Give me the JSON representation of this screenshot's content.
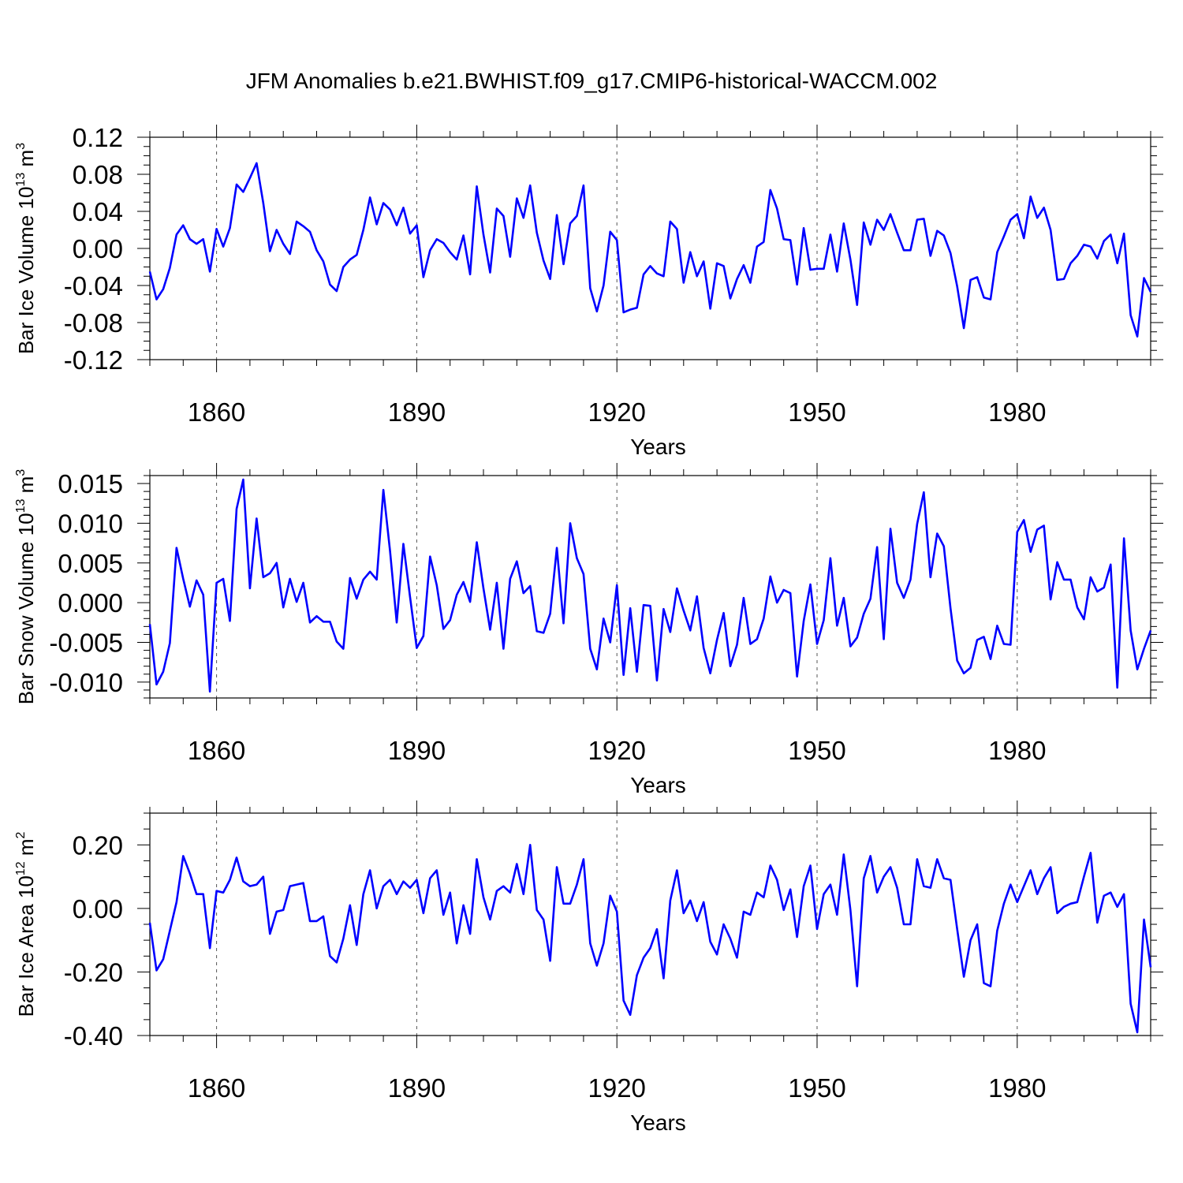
{
  "chart_data": {
    "type": "line",
    "title": "JFM Anomalies b.e21.BWHIST.f09_g17.CMIP6-historical-WACCM.002",
    "x_start": 1850,
    "x_end": 2000,
    "color": "#0000ff",
    "panels": [
      {
        "id": "ice-volume",
        "ylabel": "Bar Ice Volume 10",
        "ylabel_exp": "13",
        "ylabel_unit": " m",
        "ylabel_unit_exp": "3",
        "xlabel": "Years",
        "ylim": [
          -0.12,
          0.12
        ],
        "yticks": [
          -0.12,
          -0.08,
          -0.04,
          0.0,
          0.04,
          0.08,
          0.12
        ],
        "ytick_labels": [
          "-0.12",
          "-0.08",
          "-0.04",
          "0.00",
          "0.04",
          "0.08",
          "0.12"
        ],
        "xticks": [
          1860,
          1890,
          1920,
          1950,
          1980
        ],
        "xtick_labels": [
          "1860",
          "1890",
          "1920",
          "1950",
          "1980"
        ],
        "values": [
          -0.025,
          -0.055,
          -0.044,
          -0.021,
          0.015,
          0.025,
          0.01,
          0.005,
          0.01,
          -0.025,
          0.021,
          0.002,
          0.022,
          0.069,
          0.061,
          0.076,
          0.092,
          0.049,
          -0.003,
          0.02,
          0.005,
          -0.006,
          0.029,
          0.024,
          0.018,
          -0.002,
          -0.014,
          -0.039,
          -0.046,
          -0.02,
          -0.012,
          -0.007,
          0.02,
          0.055,
          0.026,
          0.049,
          0.042,
          0.025,
          0.044,
          0.016,
          0.025,
          -0.031,
          -0.002,
          0.01,
          0.006,
          -0.004,
          -0.012,
          0.014,
          -0.028,
          0.067,
          0.015,
          -0.026,
          0.043,
          0.035,
          -0.009,
          0.054,
          0.033,
          0.068,
          0.017,
          -0.013,
          -0.033,
          0.036,
          -0.017,
          0.027,
          0.035,
          0.068,
          -0.043,
          -0.068,
          -0.04,
          0.018,
          0.009,
          -0.069,
          -0.066,
          -0.064,
          -0.028,
          -0.019,
          -0.027,
          -0.03,
          0.029,
          0.021,
          -0.037,
          -0.004,
          -0.03,
          -0.014,
          -0.065,
          -0.016,
          -0.019,
          -0.054,
          -0.033,
          -0.018,
          -0.037,
          0.002,
          0.007,
          0.063,
          0.043,
          0.01,
          0.009,
          -0.039,
          0.022,
          -0.023,
          -0.022,
          -0.022,
          0.015,
          -0.025,
          0.027,
          -0.012,
          -0.061,
          0.028,
          0.004,
          0.031,
          0.02,
          0.037,
          0.017,
          -0.002,
          -0.002,
          0.031,
          0.032,
          -0.008,
          0.019,
          0.014,
          -0.005,
          -0.041,
          -0.086,
          -0.034,
          -0.031,
          -0.053,
          -0.055,
          -0.004,
          0.013,
          0.031,
          0.037,
          0.011,
          0.056,
          0.033,
          0.044,
          0.02,
          -0.034,
          -0.033,
          -0.016,
          -0.008,
          0.004,
          0.002,
          -0.011,
          0.008,
          0.015,
          -0.016,
          0.016,
          -0.072,
          -0.095,
          -0.032,
          -0.047
        ]
      },
      {
        "id": "snow-volume",
        "ylabel": "Bar Snow Volume 10",
        "ylabel_exp": "13",
        "ylabel_unit": " m",
        "ylabel_unit_exp": "3",
        "xlabel": "Years",
        "ylim": [
          -0.012,
          0.016
        ],
        "yticks": [
          -0.01,
          -0.005,
          0.0,
          0.005,
          0.01,
          0.015
        ],
        "ytick_labels": [
          "-0.010",
          "-0.005",
          "0.000",
          "0.005",
          "0.010",
          "0.015"
        ],
        "xticks": [
          1860,
          1890,
          1920,
          1950,
          1980
        ],
        "xtick_labels": [
          "1860",
          "1890",
          "1920",
          "1950",
          "1980"
        ],
        "values": [
          -0.0027,
          -0.0103,
          -0.0087,
          -0.0051,
          0.0069,
          0.003,
          -0.0005,
          0.0028,
          0.001,
          -0.0112,
          0.0025,
          0.003,
          -0.0023,
          0.0118,
          0.0155,
          0.0018,
          0.0106,
          0.0032,
          0.0037,
          0.005,
          -0.0006,
          0.003,
          0.0001,
          0.0025,
          -0.0025,
          -0.0017,
          -0.0024,
          -0.0024,
          -0.0049,
          -0.0058,
          0.0031,
          0.0005,
          0.0029,
          0.0039,
          0.0029,
          0.0142,
          0.0065,
          -0.0025,
          0.0074,
          0.0007,
          -0.0057,
          -0.0042,
          0.0058,
          0.0022,
          -0.0033,
          -0.0022,
          0.001,
          0.0026,
          0.0001,
          0.0076,
          0.0018,
          -0.0034,
          0.0025,
          -0.0058,
          0.003,
          0.0052,
          0.0012,
          0.0021,
          -0.0036,
          -0.0038,
          -0.0014,
          0.0069,
          -0.0026,
          0.01,
          0.0056,
          0.0036,
          -0.0058,
          -0.0084,
          -0.002,
          -0.005,
          0.0022,
          -0.0091,
          -0.0007,
          -0.0087,
          -0.0003,
          -0.0004,
          -0.0098,
          -0.0008,
          -0.0037,
          0.0018,
          -0.001,
          -0.0035,
          0.0008,
          -0.0057,
          -0.0089,
          -0.0047,
          -0.0013,
          -0.008,
          -0.0053,
          0.0006,
          -0.0052,
          -0.0046,
          -0.002,
          0.0033,
          0.0,
          0.0016,
          0.0012,
          -0.0093,
          -0.0023,
          0.0023,
          -0.0052,
          -0.0022,
          0.0056,
          -0.0029,
          0.0006,
          -0.0055,
          -0.0044,
          -0.0014,
          0.0005,
          0.007,
          -0.0046,
          0.0093,
          0.0025,
          0.0006,
          0.0029,
          0.0099,
          0.0139,
          0.0032,
          0.0087,
          0.0071,
          -0.0007,
          -0.0073,
          -0.0089,
          -0.0082,
          -0.0047,
          -0.0043,
          -0.0071,
          -0.0029,
          -0.0052,
          -0.0053,
          0.0089,
          0.0104,
          0.0064,
          0.0092,
          0.0097,
          0.0004,
          0.0051,
          0.0029,
          0.0029,
          -0.0006,
          -0.0021,
          0.0032,
          0.0014,
          0.0019,
          0.0048,
          -0.0107,
          0.0081,
          -0.0035,
          -0.0084,
          -0.0058,
          -0.0035
        ]
      },
      {
        "id": "ice-area",
        "ylabel": "Bar Ice Area 10",
        "ylabel_exp": "12",
        "ylabel_unit": " m",
        "ylabel_unit_exp": "2",
        "xlabel": "Years",
        "ylim": [
          -0.4,
          0.3
        ],
        "yticks": [
          -0.4,
          -0.2,
          0.0,
          0.2
        ],
        "ytick_labels": [
          "-0.40",
          "-0.20",
          "0.00",
          "0.20"
        ],
        "xticks": [
          1860,
          1890,
          1920,
          1950,
          1980
        ],
        "xtick_labels": [
          "1860",
          "1890",
          "1920",
          "1950",
          "1980"
        ],
        "values": [
          -0.045,
          -0.195,
          -0.16,
          -0.07,
          0.02,
          0.165,
          0.11,
          0.045,
          0.045,
          -0.125,
          0.055,
          0.05,
          0.09,
          0.16,
          0.085,
          0.07,
          0.075,
          0.1,
          -0.08,
          -0.01,
          -0.005,
          0.07,
          0.075,
          0.08,
          -0.04,
          -0.04,
          -0.025,
          -0.15,
          -0.17,
          -0.095,
          0.01,
          -0.115,
          0.045,
          0.12,
          0.0,
          0.07,
          0.09,
          0.045,
          0.085,
          0.065,
          0.09,
          -0.015,
          0.095,
          0.12,
          -0.02,
          0.05,
          -0.11,
          0.01,
          -0.08,
          0.155,
          0.035,
          -0.035,
          0.055,
          0.07,
          0.05,
          0.14,
          0.045,
          0.2,
          -0.005,
          -0.035,
          -0.165,
          0.13,
          0.015,
          0.015,
          0.075,
          0.155,
          -0.11,
          -0.18,
          -0.11,
          0.04,
          -0.01,
          -0.29,
          -0.335,
          -0.21,
          -0.155,
          -0.125,
          -0.065,
          -0.22,
          0.025,
          0.12,
          -0.015,
          0.025,
          -0.04,
          0.02,
          -0.105,
          -0.145,
          -0.05,
          -0.095,
          -0.155,
          -0.01,
          -0.02,
          0.05,
          0.035,
          0.135,
          0.09,
          -0.005,
          0.06,
          -0.09,
          0.07,
          0.135,
          -0.065,
          0.045,
          0.075,
          -0.02,
          0.17,
          -0.005,
          -0.245,
          0.095,
          0.165,
          0.05,
          0.1,
          0.13,
          0.065,
          -0.05,
          -0.05,
          0.155,
          0.07,
          0.065,
          0.155,
          0.095,
          0.09,
          -0.065,
          -0.215,
          -0.1,
          -0.05,
          -0.235,
          -0.245,
          -0.07,
          0.015,
          0.075,
          0.02,
          0.07,
          0.12,
          0.045,
          0.095,
          0.13,
          -0.015,
          0.005,
          0.015,
          0.02,
          0.1,
          0.175,
          -0.045,
          0.04,
          0.05,
          0.005,
          0.045,
          -0.3,
          -0.39,
          -0.035,
          -0.185
        ]
      }
    ]
  }
}
